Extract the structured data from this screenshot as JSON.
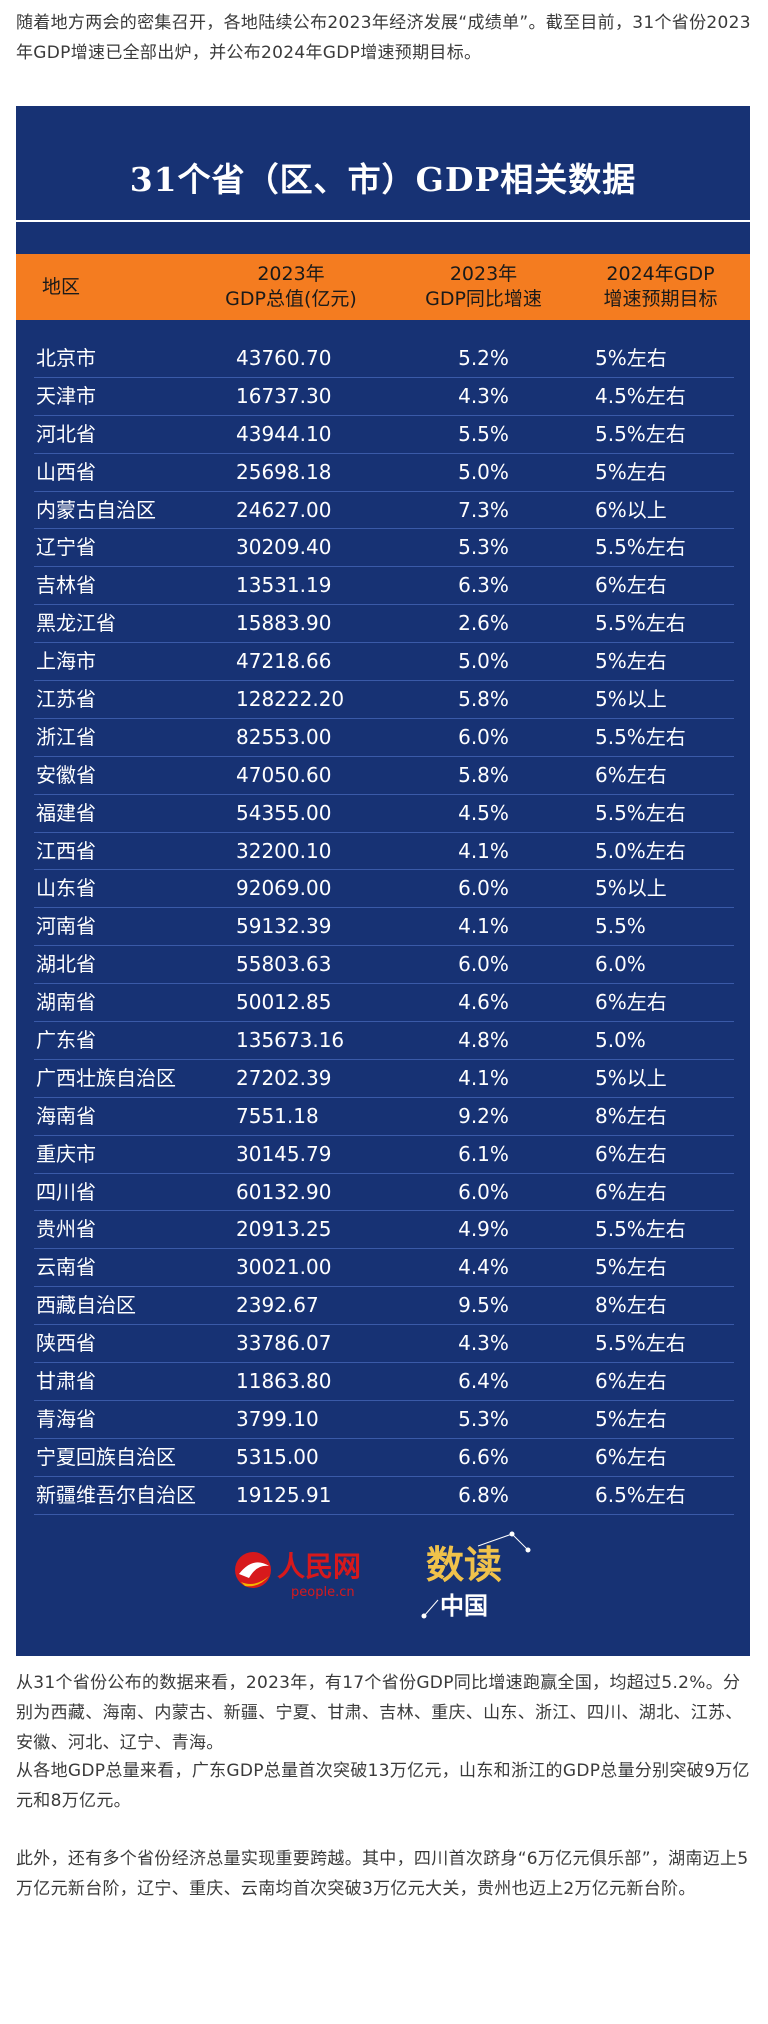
{
  "intro": "随着地方两会的密集召开，各地陆续公布2023年经济发展“成绩单”。截至目前，31个省份2023年GDP增速已全部出炉，并公布2024年GDP增速预期目标。",
  "table": {
    "title": "31个省（区、市）GDP相关数据",
    "headers": {
      "region": "地区",
      "gdp": "2023年\nGDP总值(亿元)",
      "growth": "2023年\nGDP同比增速",
      "target": "2024年GDP\n增速预期目标"
    },
    "rows": [
      {
        "region": "北京市",
        "gdp": "43760.70",
        "growth": "5.2%",
        "target": "5%左右"
      },
      {
        "region": "天津市",
        "gdp": "16737.30",
        "growth": "4.3%",
        "target": "4.5%左右"
      },
      {
        "region": "河北省",
        "gdp": "43944.10",
        "growth": "5.5%",
        "target": "5.5%左右"
      },
      {
        "region": "山西省",
        "gdp": "25698.18",
        "growth": "5.0%",
        "target": "5%左右"
      },
      {
        "region": "内蒙古自治区",
        "gdp": "24627.00",
        "growth": "7.3%",
        "target": "6%以上"
      },
      {
        "region": "辽宁省",
        "gdp": "30209.40",
        "growth": "5.3%",
        "target": "5.5%左右"
      },
      {
        "region": "吉林省",
        "gdp": "13531.19",
        "growth": "6.3%",
        "target": "6%左右"
      },
      {
        "region": "黑龙江省",
        "gdp": "15883.90",
        "growth": "2.6%",
        "target": "5.5%左右"
      },
      {
        "region": "上海市",
        "gdp": "47218.66",
        "growth": "5.0%",
        "target": "5%左右"
      },
      {
        "region": "江苏省",
        "gdp": "128222.20",
        "growth": "5.8%",
        "target": "5%以上"
      },
      {
        "region": "浙江省",
        "gdp": "82553.00",
        "growth": "6.0%",
        "target": "5.5%左右"
      },
      {
        "region": "安徽省",
        "gdp": "47050.60",
        "growth": "5.8%",
        "target": "6%左右"
      },
      {
        "region": "福建省",
        "gdp": "54355.00",
        "growth": "4.5%",
        "target": "5.5%左右"
      },
      {
        "region": "江西省",
        "gdp": "32200.10",
        "growth": "4.1%",
        "target": "5.0%左右"
      },
      {
        "region": "山东省",
        "gdp": "92069.00",
        "growth": "6.0%",
        "target": "5%以上"
      },
      {
        "region": "河南省",
        "gdp": "59132.39",
        "growth": "4.1%",
        "target": "5.5%"
      },
      {
        "region": "湖北省",
        "gdp": "55803.63",
        "growth": "6.0%",
        "target": "6.0%"
      },
      {
        "region": "湖南省",
        "gdp": "50012.85",
        "growth": "4.6%",
        "target": "6%左右"
      },
      {
        "region": "广东省",
        "gdp": "135673.16",
        "growth": "4.8%",
        "target": "5.0%"
      },
      {
        "region": "广西壮族自治区",
        "gdp": "27202.39",
        "growth": "4.1%",
        "target": "5%以上"
      },
      {
        "region": "海南省",
        "gdp": "7551.18",
        "growth": "9.2%",
        "target": "8%左右"
      },
      {
        "region": "重庆市",
        "gdp": "30145.79",
        "growth": "6.1%",
        "target": "6%左右"
      },
      {
        "region": "四川省",
        "gdp": "60132.90",
        "growth": "6.0%",
        "target": "6%左右"
      },
      {
        "region": "贵州省",
        "gdp": "20913.25",
        "growth": "4.9%",
        "target": "5.5%左右"
      },
      {
        "region": "云南省",
        "gdp": "30021.00",
        "growth": "4.4%",
        "target": "5%左右"
      },
      {
        "region": "西藏自治区",
        "gdp": "2392.67",
        "growth": "9.5%",
        "target": "8%左右"
      },
      {
        "region": "陕西省",
        "gdp": "33786.07",
        "growth": "4.3%",
        "target": "5.5%左右"
      },
      {
        "region": "甘肃省",
        "gdp": "11863.80",
        "growth": "6.4%",
        "target": "6%左右"
      },
      {
        "region": "青海省",
        "gdp": "3799.10",
        "growth": "5.3%",
        "target": "5%左右"
      },
      {
        "region": "宁夏回族自治区",
        "gdp": "5315.00",
        "growth": "6.6%",
        "target": "6%左右"
      },
      {
        "region": "新疆维吾尔自治区",
        "gdp": "19125.91",
        "growth": "6.8%",
        "target": "6.5%左右"
      }
    ],
    "logos": {
      "people_name": "人民网",
      "people_url": "people.cn",
      "shudu_top": "数读",
      "shudu_bottom": "中国"
    }
  },
  "paragraphs": {
    "p1": "从31个省份公布的数据来看，2023年，有17个省份GDP同比增速跑赢全国，均超过5.2%。分别为西藏、海南、内蒙古、新疆、宁夏、甘肃、吉林、重庆、山东、浙江、四川、湖北、江苏、安徽、河北、辽宁、青海。",
    "p2": "从各地GDP总量来看，广东GDP总量首次突破13万亿元，山东和浙江的GDP总量分别突破9万亿元和8万亿元。",
    "p3": "此外，还有多个省份经济总量实现重要跨越。其中，四川首次跻身“6万亿元俱乐部”，湖南迈上5万亿元新台阶，辽宁、重庆、云南均首次突破3万亿元大关，贵州也迈上2万亿元新台阶。"
  },
  "colors": {
    "panel": "#173274",
    "header": "#f47c20",
    "logo_red": "#d7191c",
    "logo_gold": "#f0c24b"
  }
}
